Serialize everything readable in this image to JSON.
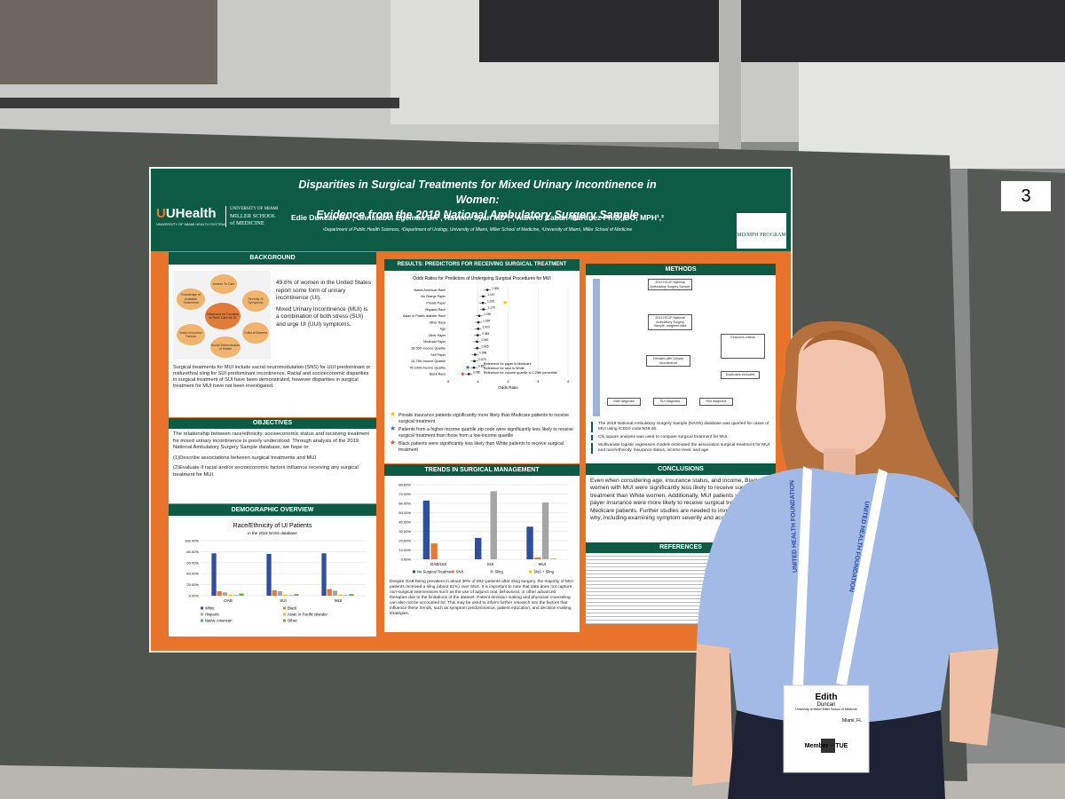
{
  "booth_number": "3",
  "poster": {
    "title_line1": "Disparities in Surgical Treatments for Mixed Urinary Incontinence in Women:",
    "title_line2": "Evidence from the 2019 National Ambulatory Surgery Sample",
    "authors": "Edie Duncan BA¹, Christabel Egemba BA¹, Raveen Syan MD²,³, Alberto Caban-Martinez Ph.D, DO, MPH¹,²",
    "affiliations": "¹Department of Public Health Sciences, ²Department of Urology, University of Miami, Miller School of Medicine, ³University of Miami, Miller School of Medicine",
    "logo_brand": "UHealth",
    "logo_sub": "UNIVERSITY OF MIAMI HEALTH SYSTEM",
    "school": [
      "UNIVERSITY OF MIAMI",
      "MILLER SCHOOL",
      "of MEDICINE"
    ],
    "program": "MD/MPH PROGRAM",
    "background": {
      "heading": "BACKGROUND",
      "nodes": [
        "Influences for Decision to Seek Care for UI",
        "Access To Care",
        "Knowledge of Available Treatments",
        "Severity of Symptoms",
        "Cultural Barriers",
        "Social Determinants of Health",
        "Socio-economic Factors"
      ],
      "stats": [
        "49.6% of women in the United States report some form of urinary incontinence (UI).",
        "Mixed Urinary Incontinence (MUI) is a combination of both stress (SUI) and urge UI (UUI) symptoms."
      ],
      "body": "Surgical treatments for MUI include sacral neuromodulation (SNS) for UUI predominant or midurethral sling for SUI predominant incontinence. Racial and socioeconomic disparities in surgical treatment of SUI have been demonstrated, however disparities in surgical treatment for MUI have not been investigated."
    },
    "objectives": {
      "heading": "OBJECTIVES",
      "intro": "The relationship between race/ethnicity, socioeconomic status and receiving treatment for mixed urinary incontinence is poorly understood. Through analysis of the 2019 National Ambulatory Surgery Sample database, we hope to:",
      "items": [
        "(1)Describe associations between surgical treatments and MUI",
        "(2)Evaluate if racial and/or socioeconomic factors influence receiving any surgical treatment for MUI."
      ]
    },
    "demographic": {
      "heading": "DEMOGRAPHIC OVERVIEW",
      "title": "Race/Ethnicity of UI Patients",
      "subtitle": "in the 2019 NASS database",
      "categories": [
        "OAB",
        "SUI",
        "MUI"
      ],
      "ylim": [
        0,
        100
      ],
      "yticks": [
        {
          "value": 0,
          "label": "0.00%"
        },
        {
          "value": 20,
          "label": "20.00%"
        },
        {
          "value": 40,
          "label": "40.00%"
        },
        {
          "value": 60,
          "label": "60.00%"
        },
        {
          "value": 80,
          "label": "80.00%"
        },
        {
          "value": 100,
          "label": "100.00%"
        }
      ],
      "series": [
        {
          "name": "White",
          "color": "#2e4fa0",
          "values": [
            77,
            76,
            77
          ]
        },
        {
          "name": "Black",
          "color": "#e07b39",
          "values": [
            8,
            10,
            12
          ]
        },
        {
          "name": "Hispanic",
          "color": "#a5a5a5",
          "values": [
            6,
            8,
            9
          ]
        },
        {
          "name": "Asian or Pacific Islander",
          "color": "#f2c200",
          "values": [
            2,
            2,
            2
          ]
        },
        {
          "name": "Native American",
          "color": "#5b9bd5",
          "values": [
            1,
            1,
            1
          ]
        },
        {
          "name": "Other",
          "color": "#70ad47",
          "values": [
            4,
            3,
            3
          ]
        }
      ]
    },
    "results": {
      "heading": "RESULTS: PREDICTORS FOR RECEIVING SURGICAL TREATMENT",
      "title": "Odds Ratios for Predictors of Undergoing Surgical Procedures for MUI",
      "x_label": "Odds Ratio",
      "xlim": [
        0,
        4
      ],
      "xticks": [
        0,
        1,
        2,
        3,
        4
      ],
      "categories": [
        "Native American Race",
        "No Charge Payer",
        "Private Payer",
        "Hispanic Race",
        "Asian or Pacific Islander Race",
        "Other Race",
        "Age",
        "Other Payer",
        "Medicaid Payer",
        "26-50th Income Quartile",
        "Self Payer",
        "51-75th Income Quartile",
        "76-100th Income Quartile",
        "Black Race"
      ],
      "values": [
        1.306,
        1.167,
        1.156,
        1.176,
        1.036,
        1.008,
        1.0,
        0.983,
        0.962,
        0.965,
        0.898,
        0.875,
        0.857,
        0.69
      ],
      "value_labels": [
        "1.306",
        "1.167",
        "1.156",
        "1.176",
        "1.036",
        "1.008",
        "1.000",
        "0.983",
        "0.962",
        "0.965",
        "0.898",
        "0.875",
        "0.857",
        "0.690"
      ],
      "notes": [
        "Reference for payer is Medicare",
        "Reference for race is White",
        "Reference for income quartile is 0-25th percentile"
      ],
      "bullets": [
        "Private insurance patients significantly more likely than Medicare patients to receive surgical treatment",
        "Patients from a higher-income quartile zip code were significantly less likely to receive surgical treatment than those from a low-income quartile",
        "Black patients were significantly less likely than White patients to receive surgical treatment"
      ]
    },
    "trends": {
      "heading": "TRENDS IN SURGICAL MANAGEMENT",
      "categories": [
        "OAB/UUI",
        "SUI",
        "MUI"
      ],
      "ylim": [
        0,
        80
      ],
      "yticks": [
        {
          "value": 0,
          "label": "0.00%"
        },
        {
          "value": 10,
          "label": "10.00%"
        },
        {
          "value": 20,
          "label": "20.00%"
        },
        {
          "value": 30,
          "label": "30.00%"
        },
        {
          "value": 40,
          "label": "40.00%"
        },
        {
          "value": 50,
          "label": "50.00%"
        },
        {
          "value": 60,
          "label": "60.00%"
        },
        {
          "value": 70,
          "label": "70.00%"
        },
        {
          "value": 80,
          "label": "80.00%"
        }
      ],
      "series": [
        {
          "name": "No Surgical Treatment",
          "color": "#2e4fa0",
          "values": [
            63,
            23,
            35
          ]
        },
        {
          "name": "SNS",
          "color": "#e07b39",
          "values": [
            17,
            0,
            2
          ]
        },
        {
          "name": "Sling",
          "color": "#a5a5a5",
          "values": [
            0,
            73,
            61
          ]
        },
        {
          "name": "SNS + Sling",
          "color": "#f2c200",
          "values": [
            0,
            0,
            1
          ]
        }
      ],
      "body": "Despite OAB being prevalent in about 30% of MUI patients after sling surgery, the majority of MUI patients received a sling (about 61%) over SNS. It is important to note that data does not capture non-surgical interventions such as the use of adjunct oral, behavioral, or other advanced therapies due to the limitations of the dataset. Patient decision making and physician counseling can also not be accounted for. This may be used to inform further research into the factors that influence these trends, such as symptom predominance, patient education, and decision-making strategies."
    },
    "methods": {
      "heading": "METHODS",
      "nodes": [
        "2019 HCUP National Ambulatory Surgery Sample",
        "2019 HCUP National Ambulatory Surgery Sample- weighted data",
        "Females with Urinary Incontinence",
        "Exclusion criteria",
        "Duplicates excluded",
        "OAB diagnosis",
        "SUI diagnosis",
        "MUI diagnosis"
      ],
      "bullets": [
        "The 2019 National Ambulatory Surgery Sample (NASS) database was queried for cases of MUI using ICD10 code N39.46.",
        "Chi square analysis was used to compare surgical treatment for MUI.",
        "Multivariate logistic regression models estimated the association surgical treatment for MUI and race/ethnicity, insurance status, income level, and age."
      ]
    },
    "conclusions": {
      "heading": "CONCLUSIONS",
      "body": "Even when considering age, insurance status, and income, Black women with MUI were significantly less likely to receive surgical treatment than White women. Additionally, MUI patients with private payer insurance were more likely to receive surgical treatment than Medicare patients. Further studies are needed to investigate reasons why, including examining symptom severity and access to care."
    },
    "references": {
      "heading": "REFERENCES"
    }
  },
  "lanyard": "UNITED HEALTH FOUNDATION",
  "badge": {
    "first": "Edith",
    "last": "Duncan",
    "affiliation": "University of Miami Miller School of Medicine",
    "city": "Miami, FL",
    "role": "Member – TUE"
  }
}
